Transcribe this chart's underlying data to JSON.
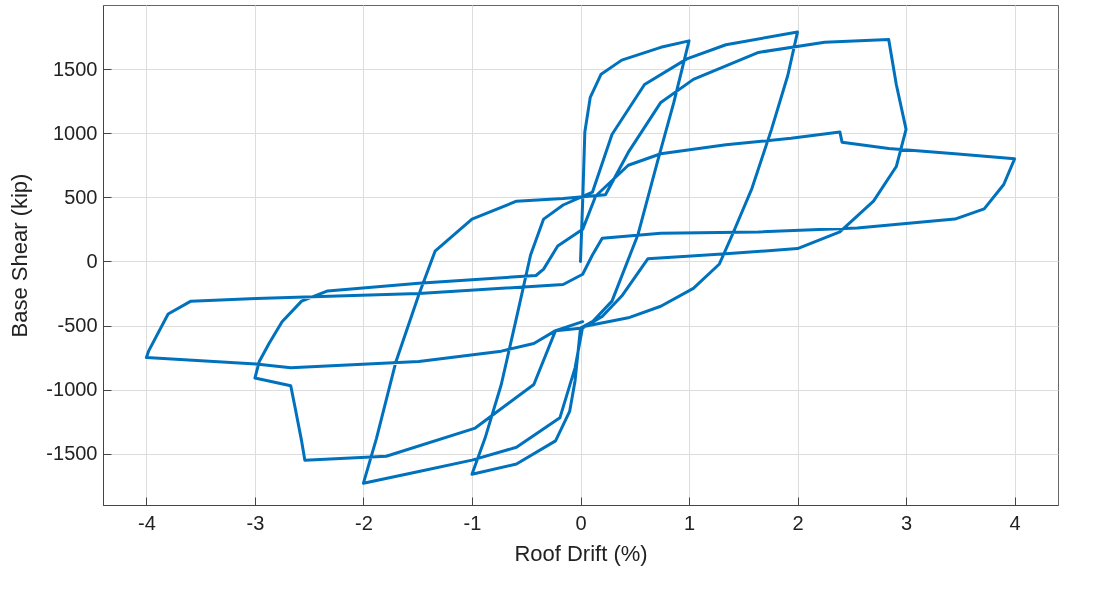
{
  "chart_data": {
    "type": "line",
    "xlabel": "Roof Drift (%)",
    "ylabel": "Base Shear (kip)",
    "xlim": [
      -4.4,
      4.4
    ],
    "ylim": [
      -1900,
      2000
    ],
    "xticks": [
      -4,
      -3,
      -2,
      -1,
      0,
      1,
      2,
      3,
      4
    ],
    "yticks": [
      -1500,
      -1000,
      -500,
      0,
      500,
      1000,
      1500
    ],
    "grid": true,
    "marker": "none",
    "series": [
      {
        "color": "#0072bd",
        "x": [
          0,
          0.02,
          0.04,
          0.09,
          0.19,
          0.38,
          0.74,
          1.0,
          0.86,
          0.71,
          0.53,
          0.29,
          0.11,
          0,
          -0.05,
          -0.1,
          -0.23,
          -0.59,
          -1.0,
          -0.88,
          -0.73,
          -0.59,
          -0.46,
          -0.34,
          -0.16,
          0.11,
          0.29,
          0.59,
          0.98,
          1.34,
          2.0,
          1.91,
          1.76,
          1.58,
          1.4,
          1.28,
          1.04,
          0.74,
          0.44,
          0.02,
          -0.05,
          -0.19,
          -0.59,
          -1.0,
          -1.5,
          -2.0,
          -1.88,
          -1.7,
          -1.49,
          -1.34,
          -1.0,
          -0.59,
          -0.16,
          0.23,
          0.44,
          0.74,
          1.04,
          1.64,
          2.25,
          2.84,
          2.91,
          3.0,
          2.91,
          2.7,
          2.39,
          2.0,
          1.34,
          0.62,
          0.53,
          0.38,
          0.2,
          0.02,
          -0.23,
          -0.43,
          -0.97,
          -1.79,
          -2.54,
          -2.57,
          -2.63,
          -2.67,
          -3.0,
          -2.96,
          -2.87,
          -2.75,
          -2.57,
          -2.33,
          -1.49,
          -0.41,
          -0.34,
          -0.21,
          0.02,
          0.14,
          0.44,
          0.74,
          1.34,
          1.94,
          2.39,
          2.41,
          2.84,
          3.45,
          4.0,
          3.9,
          3.72,
          3.45,
          2.55,
          1.64,
          0.74,
          0.2,
          0.11,
          0.02,
          -0.16,
          -1.49,
          -2.99,
          -3.59,
          -3.8,
          -3.98,
          -4.0,
          -2.99,
          -2.67,
          -1.49,
          -0.73,
          -0.43,
          -0.23,
          0.02
        ],
        "values": [
          0,
          470,
          1010,
          1280,
          1460,
          1570,
          1670,
          1720,
          1240,
          780,
          210,
          -310,
          -470,
          -520,
          -930,
          -1170,
          -1400,
          -1580,
          -1660,
          -1380,
          -960,
          -440,
          50,
          330,
          440,
          540,
          990,
          1380,
          1580,
          1690,
          1790,
          1450,
          1030,
          570,
          210,
          -20,
          -210,
          -350,
          -440,
          -510,
          -830,
          -1220,
          -1450,
          -1550,
          -1640,
          -1730,
          -1380,
          -780,
          -260,
          80,
          330,
          470,
          490,
          520,
          850,
          1240,
          1420,
          1630,
          1710,
          1730,
          1380,
          1030,
          740,
          470,
          230,
          100,
          60,
          20,
          -90,
          -270,
          -430,
          -520,
          -540,
          -960,
          -1300,
          -1520,
          -1550,
          -1400,
          -1140,
          -970,
          -910,
          -780,
          -640,
          -470,
          -310,
          -230,
          -170,
          -110,
          -60,
          120,
          250,
          510,
          750,
          840,
          910,
          960,
          1010,
          930,
          880,
          840,
          800,
          600,
          410,
          330,
          260,
          230,
          220,
          180,
          50,
          -100,
          -180,
          -250,
          -290,
          -310,
          -410,
          -700,
          -750,
          -800,
          -830,
          -780,
          -700,
          -640,
          -540,
          -470
        ]
      }
    ]
  }
}
